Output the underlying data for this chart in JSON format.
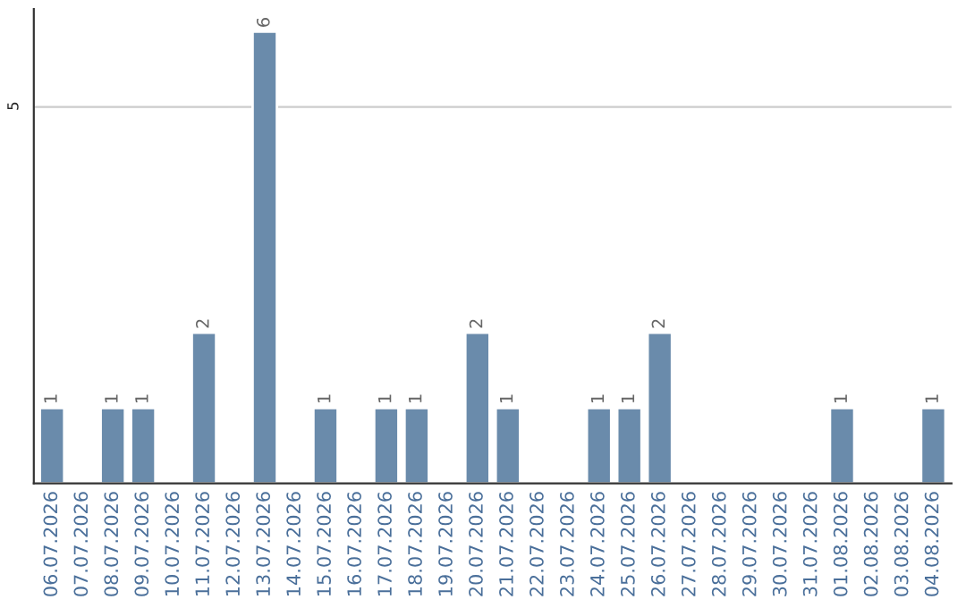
{
  "chart_data": {
    "type": "bar",
    "categories": [
      "06.07.2026",
      "07.07.2026",
      "08.07.2026",
      "09.07.2026",
      "10.07.2026",
      "11.07.2026",
      "12.07.2026",
      "13.07.2026",
      "14.07.2026",
      "15.07.2026",
      "16.07.2026",
      "17.07.2026",
      "18.07.2026",
      "19.07.2026",
      "20.07.2026",
      "21.07.2026",
      "22.07.2026",
      "23.07.2026",
      "24.07.2026",
      "25.07.2026",
      "26.07.2026",
      "27.07.2026",
      "28.07.2026",
      "29.07.2026",
      "30.07.2026",
      "31.07.2026",
      "01.08.2026",
      "02.08.2026",
      "03.08.2026",
      "04.08.2026"
    ],
    "values": [
      1,
      0,
      1,
      1,
      0,
      2,
      0,
      6,
      0,
      1,
      0,
      1,
      1,
      0,
      2,
      1,
      0,
      0,
      1,
      1,
      2,
      0,
      0,
      0,
      0,
      0,
      1,
      0,
      0,
      1
    ],
    "value_labels": [
      "1",
      null,
      "1",
      "1",
      null,
      "2",
      null,
      "6",
      null,
      "1",
      null,
      "1",
      "1",
      null,
      "2",
      "1",
      null,
      null,
      "1",
      "1",
      "2",
      null,
      null,
      null,
      null,
      null,
      "1",
      null,
      null,
      "1"
    ],
    "color": "#6a8bab",
    "ylim": [
      0,
      6.3
    ],
    "yticks": [
      5
    ],
    "grid": "y"
  }
}
